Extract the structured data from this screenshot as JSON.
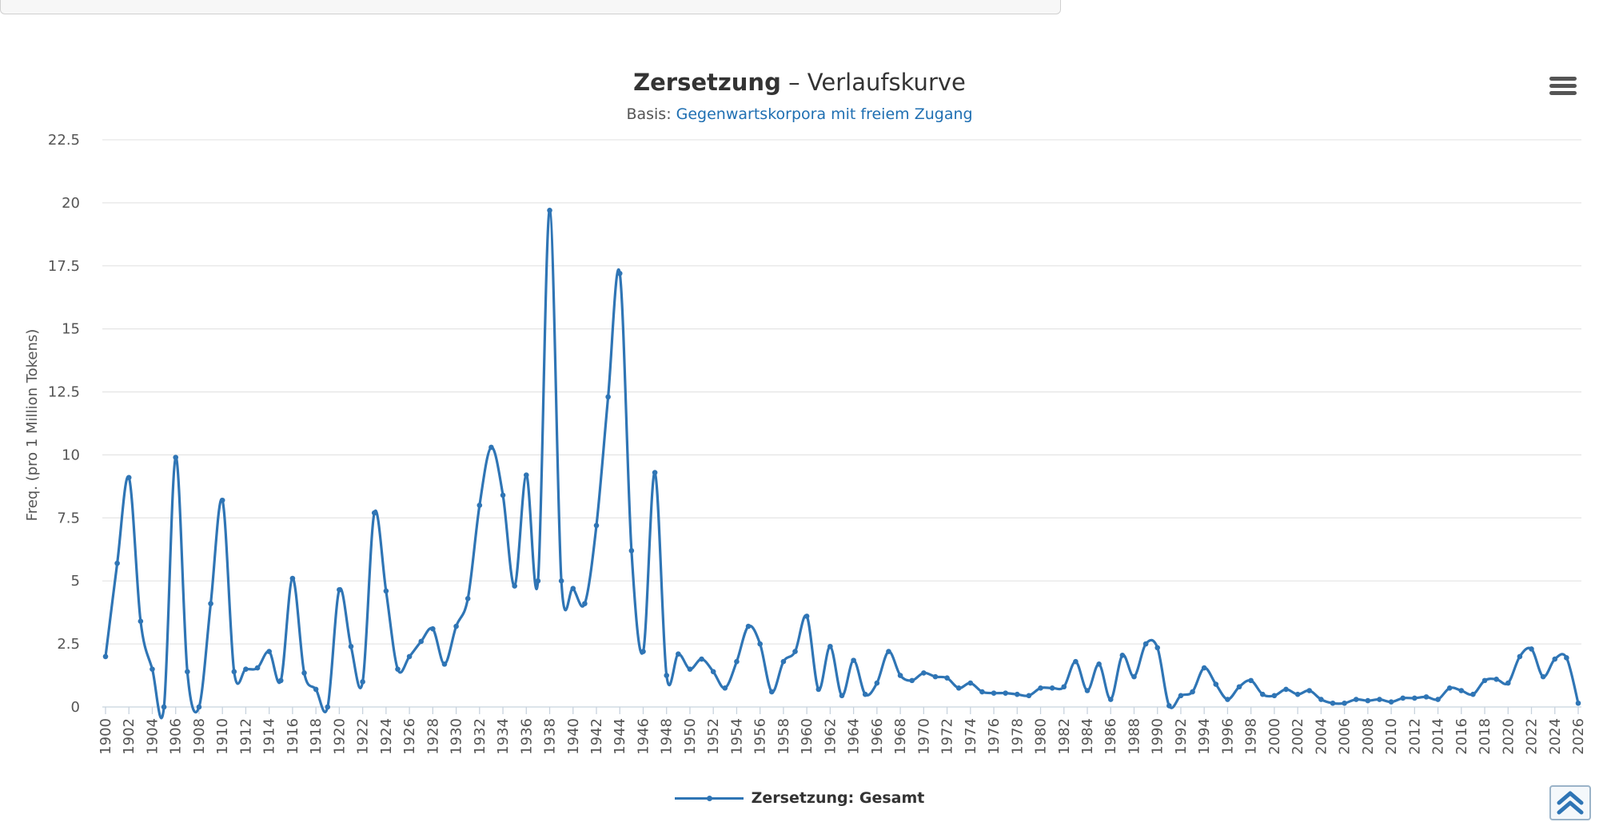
{
  "chart_data": {
    "type": "line",
    "title_keyword": "Zersetzung",
    "title_rest": "– Verlaufskurve",
    "subtitle_prefix": "Basis:",
    "subtitle_link": "Gegenwartskorpora mit freiem Zugang",
    "ylabel": "Freq. (pro 1 Million Tokens)",
    "ylim": [
      0,
      22.5
    ],
    "yticks": [
      "0",
      "2.5",
      "5",
      "7.5",
      "10",
      "12.5",
      "15",
      "17.5",
      "20",
      "22.5"
    ],
    "xlim": [
      1900,
      2026
    ],
    "xticks": [
      1900,
      1902,
      1904,
      1906,
      1908,
      1910,
      1912,
      1914,
      1916,
      1918,
      1920,
      1922,
      1924,
      1926,
      1928,
      1930,
      1932,
      1934,
      1936,
      1938,
      1940,
      1942,
      1944,
      1946,
      1948,
      1950,
      1952,
      1954,
      1956,
      1958,
      1960,
      1962,
      1964,
      1966,
      1968,
      1970,
      1972,
      1974,
      1976,
      1978,
      1980,
      1982,
      1984,
      1986,
      1988,
      1990,
      1992,
      1994,
      1996,
      1998,
      2000,
      2002,
      2004,
      2006,
      2008,
      2010,
      2012,
      2014,
      2016,
      2018,
      2020,
      2022,
      2024,
      2026
    ],
    "grid": true,
    "legend_position": "bottom-center",
    "series": [
      {
        "name": "Zersetzung: Gesamt",
        "color": "#2f75b5",
        "x": [
          1900,
          1901,
          1902,
          1903,
          1904,
          1905,
          1906,
          1907,
          1908,
          1909,
          1910,
          1911,
          1912,
          1913,
          1914,
          1915,
          1916,
          1917,
          1918,
          1919,
          1920,
          1921,
          1922,
          1923,
          1924,
          1925,
          1926,
          1927,
          1928,
          1929,
          1930,
          1931,
          1932,
          1933,
          1934,
          1935,
          1936,
          1937,
          1938,
          1939,
          1940,
          1941,
          1942,
          1943,
          1944,
          1945,
          1946,
          1947,
          1948,
          1949,
          1950,
          1951,
          1952,
          1953,
          1954,
          1955,
          1956,
          1957,
          1958,
          1959,
          1960,
          1961,
          1962,
          1963,
          1964,
          1965,
          1966,
          1967,
          1968,
          1969,
          1970,
          1971,
          1972,
          1973,
          1974,
          1975,
          1976,
          1977,
          1978,
          1979,
          1980,
          1981,
          1982,
          1983,
          1984,
          1985,
          1986,
          1987,
          1988,
          1989,
          1990,
          1991,
          1992,
          1993,
          1994,
          1995,
          1996,
          1997,
          1998,
          1999,
          2000,
          2001,
          2002,
          2003,
          2004,
          2005,
          2006,
          2007,
          2008,
          2009,
          2010,
          2011,
          2012,
          2013,
          2014,
          2015,
          2016,
          2017,
          2018,
          2019,
          2020,
          2021,
          2022,
          2023,
          2024,
          2025,
          2026
        ],
        "values": [
          2.0,
          5.7,
          9.1,
          3.4,
          1.5,
          0.0,
          9.9,
          1.4,
          0.0,
          4.1,
          8.2,
          1.4,
          1.5,
          1.55,
          2.2,
          1.05,
          5.1,
          1.35,
          0.7,
          0.0,
          4.65,
          2.4,
          1.0,
          7.7,
          4.6,
          1.5,
          2.0,
          2.6,
          3.1,
          1.7,
          3.2,
          4.3,
          8.0,
          10.3,
          8.4,
          4.8,
          9.2,
          5.0,
          19.7,
          5.0,
          4.7,
          4.1,
          7.2,
          12.3,
          17.2,
          6.2,
          2.2,
          9.3,
          1.25,
          2.1,
          1.5,
          1.9,
          1.4,
          0.75,
          1.8,
          3.2,
          2.5,
          0.6,
          1.8,
          2.2,
          3.6,
          0.7,
          2.4,
          0.45,
          1.85,
          0.5,
          0.95,
          2.2,
          1.25,
          1.05,
          1.35,
          1.2,
          1.15,
          0.75,
          0.95,
          0.6,
          0.55,
          0.55,
          0.5,
          0.45,
          0.75,
          0.75,
          0.8,
          1.8,
          0.65,
          1.7,
          0.3,
          2.05,
          1.2,
          2.5,
          2.35,
          0.05,
          0.45,
          0.6,
          1.55,
          0.9,
          0.3,
          0.8,
          1.05,
          0.5,
          0.45,
          0.7,
          0.5,
          0.65,
          0.3,
          0.15,
          0.15,
          0.3,
          0.25,
          0.3,
          0.2,
          0.35,
          0.35,
          0.4,
          0.3,
          0.75,
          0.65,
          0.5,
          1.05,
          1.1,
          0.95,
          2.0,
          2.3,
          1.2,
          1.9,
          1.95,
          0.15
        ]
      }
    ]
  }
}
